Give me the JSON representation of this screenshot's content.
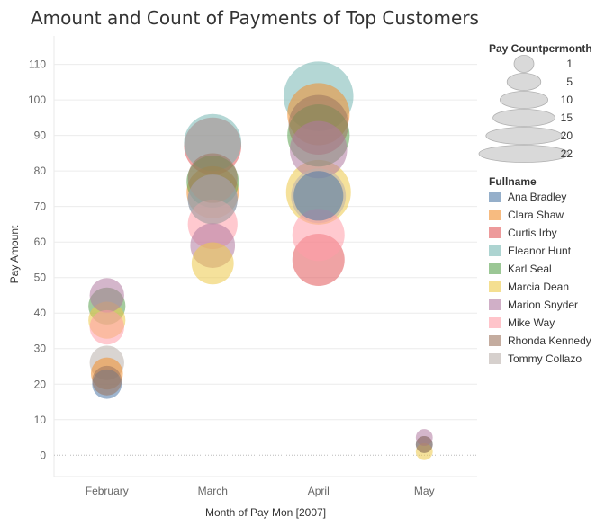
{
  "chart_data": {
    "type": "scatter",
    "title": "Amount and Count of Payments of Top Customers",
    "xlabel": "Month of Pay Mon [2007]",
    "ylabel": "Pay Amount",
    "categories": [
      "February",
      "March",
      "April",
      "May"
    ],
    "y_ticks": [
      0,
      10,
      20,
      30,
      40,
      50,
      60,
      70,
      80,
      90,
      100,
      110
    ],
    "ylim": [
      -6,
      118
    ],
    "grid": true,
    "size_legend": {
      "title": "Pay Countpermonth",
      "values": [
        1,
        5,
        10,
        15,
        20,
        22
      ]
    },
    "color_legend": {
      "title": "Fullname",
      "placement": "right"
    },
    "series": [
      {
        "name": "Ana Bradley",
        "color": "#4E79A7",
        "points": [
          {
            "x": "February",
            "y": 20,
            "count": 6
          },
          {
            "x": "March",
            "y": 72,
            "count": 14
          },
          {
            "x": "April",
            "y": 73,
            "count": 14
          },
          {
            "x": "May",
            "y": 3,
            "count": 1
          }
        ]
      },
      {
        "name": "Clara Shaw",
        "color": "#F28E2B",
        "points": [
          {
            "x": "February",
            "y": 23,
            "count": 7
          },
          {
            "x": "March",
            "y": 74,
            "count": 15
          },
          {
            "x": "April",
            "y": 96,
            "count": 19
          }
        ]
      },
      {
        "name": "Curtis Irby",
        "color": "#E15759",
        "points": [
          {
            "x": "March",
            "y": 87,
            "count": 17
          },
          {
            "x": "April",
            "y": 55,
            "count": 15
          }
        ]
      },
      {
        "name": "Eleanor Hunt",
        "color": "#76B7B2",
        "points": [
          {
            "x": "March",
            "y": 88,
            "count": 17
          },
          {
            "x": "April",
            "y": 101,
            "count": 22
          }
        ]
      },
      {
        "name": "Karl Seal",
        "color": "#59A14F",
        "points": [
          {
            "x": "February",
            "y": 42,
            "count": 9
          },
          {
            "x": "March",
            "y": 77,
            "count": 15
          },
          {
            "x": "April",
            "y": 90,
            "count": 19
          }
        ]
      },
      {
        "name": "Marcia Dean",
        "color": "#EDC948",
        "points": [
          {
            "x": "February",
            "y": 38,
            "count": 9
          },
          {
            "x": "March",
            "y": 54,
            "count": 11
          },
          {
            "x": "April",
            "y": 74,
            "count": 20
          },
          {
            "x": "May",
            "y": 1,
            "count": 1
          }
        ]
      },
      {
        "name": "Marion Snyder",
        "color": "#B07AA1",
        "points": [
          {
            "x": "February",
            "y": 45,
            "count": 8
          },
          {
            "x": "March",
            "y": 59,
            "count": 12
          },
          {
            "x": "April",
            "y": 86,
            "count": 17
          },
          {
            "x": "May",
            "y": 5,
            "count": 1
          }
        ]
      },
      {
        "name": "Mike Way",
        "color": "#FF9DA7",
        "points": [
          {
            "x": "February",
            "y": 36,
            "count": 8
          },
          {
            "x": "March",
            "y": 65,
            "count": 14
          },
          {
            "x": "April",
            "y": 62,
            "count": 15
          }
        ]
      },
      {
        "name": "Rhonda Kennedy",
        "color": "#9C755F",
        "points": [
          {
            "x": "February",
            "y": 21,
            "count": 6
          },
          {
            "x": "March",
            "y": 78,
            "count": 14
          },
          {
            "x": "April",
            "y": 93,
            "count": 18
          },
          {
            "x": "May",
            "y": 3,
            "count": 1
          }
        ]
      },
      {
        "name": "Tommy Collazo",
        "color": "#BAB0AC",
        "points": [
          {
            "x": "February",
            "y": 26,
            "count": 8
          },
          {
            "x": "March",
            "y": 72,
            "count": 14
          },
          {
            "x": "April",
            "y": 73,
            "count": 16
          }
        ]
      }
    ]
  }
}
